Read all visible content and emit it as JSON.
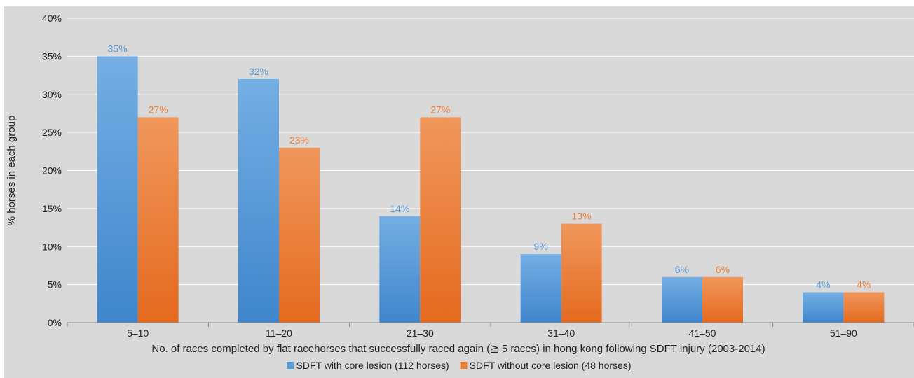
{
  "chart_data": {
    "type": "bar",
    "categories": [
      "5–10",
      "11–20",
      "21–30",
      "31–40",
      "41–50",
      "51–90"
    ],
    "series": [
      {
        "name": "SDFT with core lesion (112 horses)",
        "values": [
          35,
          32,
          14,
          9,
          6,
          4
        ],
        "labels": [
          "35%",
          "32%",
          "14%",
          "9%",
          "6%",
          "4%"
        ],
        "color": "#5b9bd5"
      },
      {
        "name": "SDFT without core lesion (48 horses)",
        "values": [
          27,
          23,
          27,
          13,
          6,
          4
        ],
        "labels": [
          "27%",
          "23%",
          "27%",
          "13%",
          "6%",
          "4%"
        ],
        "color": "#ed7d31"
      }
    ],
    "xlabel": "No. of races completed by flat racehorses that successfully raced again (≧ 5 races) in hong kong following SDFT injury (2003-2014)",
    "ylabel": "% horses in each group",
    "ylim": [
      0,
      40
    ],
    "yticks": [
      0,
      5,
      10,
      15,
      20,
      25,
      30,
      35,
      40
    ],
    "ytick_labels": [
      "0%",
      "5%",
      "10%",
      "15%",
      "20%",
      "25%",
      "30%",
      "35%",
      "40%"
    ],
    "grid": true,
    "legend_position": "bottom"
  }
}
